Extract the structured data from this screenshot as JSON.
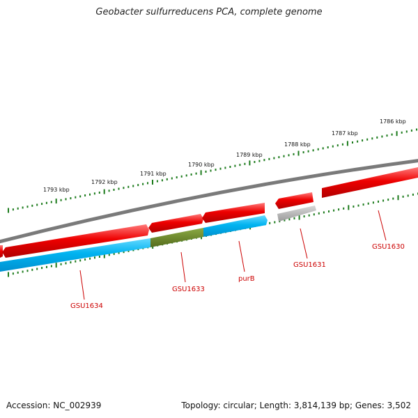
{
  "title": "Geobacter sulfurreducens PCA, complete genome",
  "footer": {
    "accession": "Accession: NC_002939",
    "topology": "Topology: circular; Length: 3,814,139 bp; Genes: 3,502"
  },
  "kbp_labels": [
    "1793 kbp",
    "1792 kbp",
    "1791 kbp",
    "1790 kbp",
    "1789 kbp",
    "1788 kbp",
    "1787 kbp",
    "1786 kbp"
  ],
  "gene_labels": [
    "GSU1634",
    "GSU1633",
    "purB",
    "GSU1631",
    "GSU1630"
  ],
  "colors": {
    "forward_gene": "#ff0000",
    "reverse_gene": "#00bfff",
    "highlight_gene": "#6b8e23",
    "pseudo_gene": "#bbbbbb",
    "backbone": "#7a7a7a",
    "tick": "#1a7a1a",
    "label": "#cc0000"
  }
}
